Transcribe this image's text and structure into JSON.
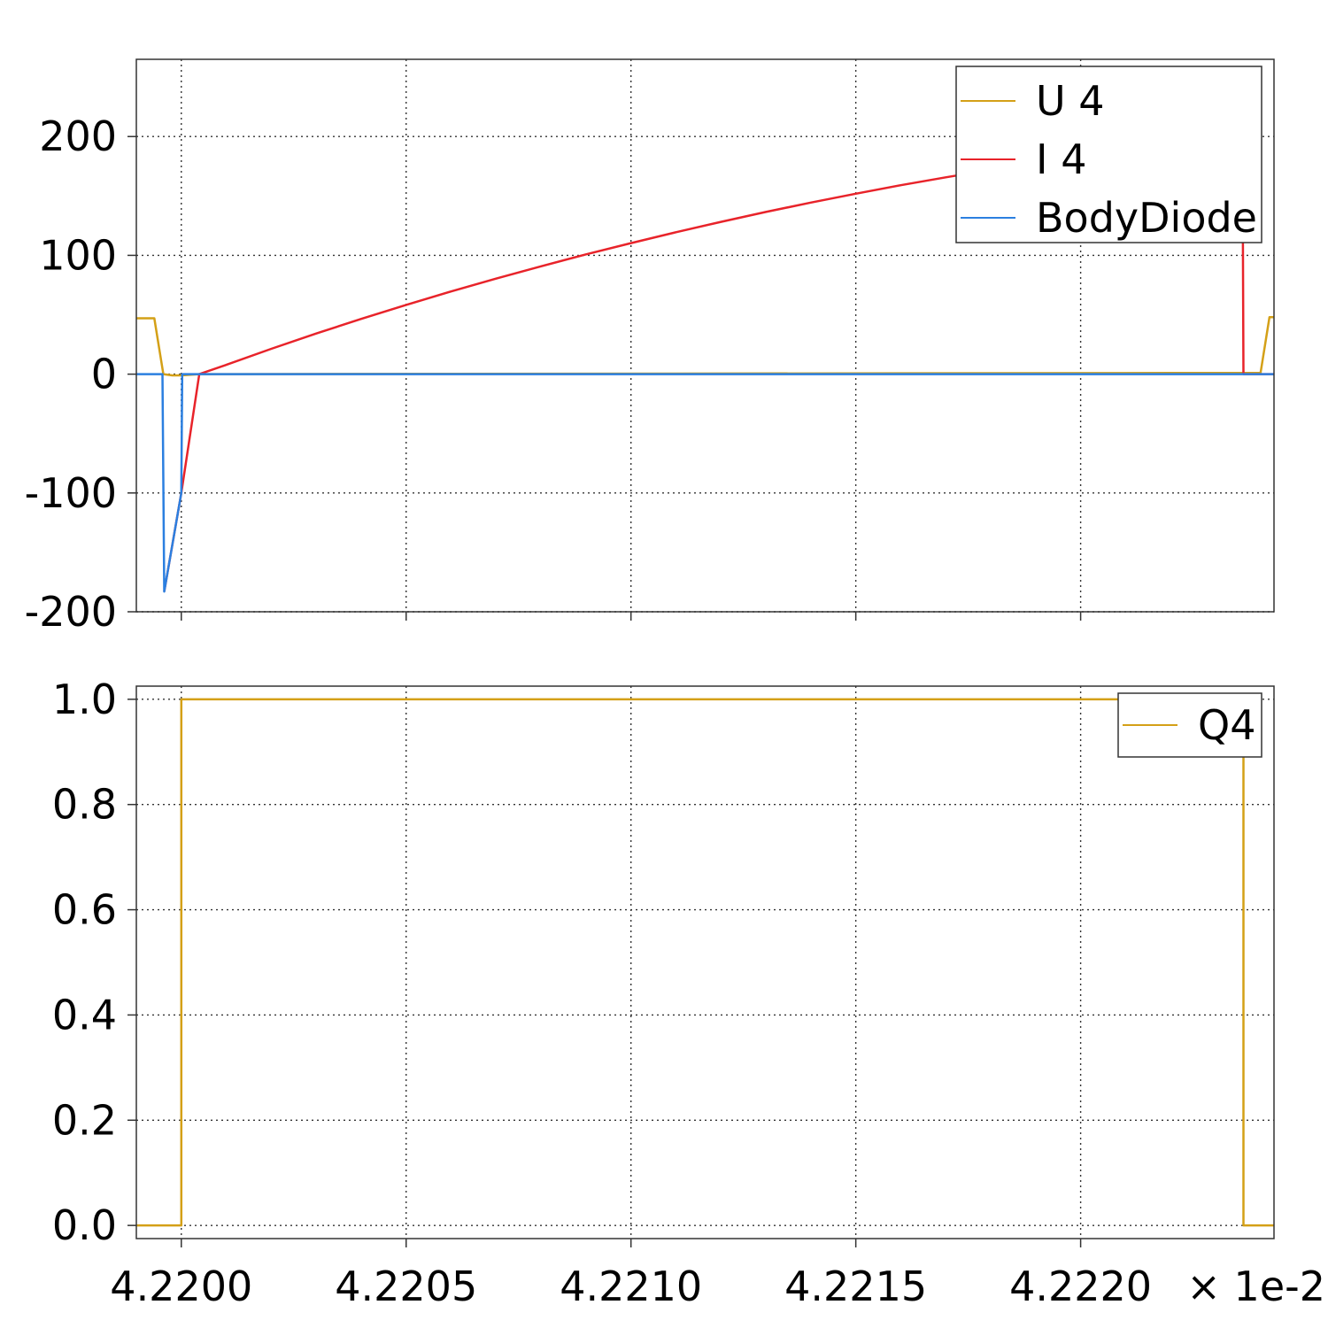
{
  "chart_data": [
    {
      "type": "line",
      "xlim": [
        42199.0,
        42224.3
      ],
      "ylim": [
        -200,
        265
      ],
      "yticks": [
        {
          "value": 200,
          "label": "200"
        },
        {
          "value": 100,
          "label": "100"
        },
        {
          "value": 0,
          "label": "0"
        },
        {
          "value": -100,
          "label": "-100"
        },
        {
          "value": -200,
          "label": "-200"
        }
      ],
      "xgrid": [
        42200,
        42205,
        42210,
        42215,
        42220,
        42225
      ],
      "grid": true,
      "legend": {
        "position": "top-right"
      },
      "series": [
        {
          "name": "U 4",
          "color": "#d4a017",
          "points": [
            [
              42199.0,
              47
            ],
            [
              42199.4,
              47
            ],
            [
              42199.6,
              0
            ],
            [
              42199.8,
              -1
            ],
            [
              42200.0,
              -1
            ],
            [
              42200.4,
              0
            ],
            [
              42222.0,
              1
            ],
            [
              42224.0,
              1
            ],
            [
              42224.2,
              48
            ],
            [
              42224.3,
              48
            ]
          ]
        },
        {
          "name": "I 4",
          "color": "#e8232a",
          "points": [
            [
              42199.62,
              -183
            ],
            [
              42200.0,
              -100
            ],
            [
              42200.4,
              0
            ],
            [
              42201,
              7.8
            ],
            [
              42202,
              21.3
            ],
            [
              42203,
              34.2
            ],
            [
              42204,
              46.5
            ],
            [
              42205,
              58.3
            ],
            [
              42206,
              69.6
            ],
            [
              42207,
              80.4
            ],
            [
              42208,
              90.8
            ],
            [
              42209,
              100.8
            ],
            [
              42210,
              110.3
            ],
            [
              42211,
              119.5
            ],
            [
              42212,
              128.2
            ],
            [
              42213,
              136.5
            ],
            [
              42214,
              144.4
            ],
            [
              42215,
              151.9
            ],
            [
              42216,
              159
            ],
            [
              42217,
              165.7
            ],
            [
              42218,
              172
            ],
            [
              42219,
              177.9
            ],
            [
              42220,
              183.4
            ],
            [
              42221,
              188.5
            ],
            [
              42222,
              193.2
            ],
            [
              42223,
              197.5
            ],
            [
              42223.6,
              200
            ],
            [
              42223.62,
              0
            ],
            [
              42224.3,
              0
            ]
          ]
        },
        {
          "name": "BodyDiode",
          "color": "#2b7fe0",
          "points": [
            [
              42199.0,
              0
            ],
            [
              42199.58,
              0
            ],
            [
              42199.62,
              -183
            ],
            [
              42200.0,
              -100
            ],
            [
              42200.02,
              0
            ],
            [
              42224.3,
              0
            ]
          ]
        }
      ]
    },
    {
      "type": "line",
      "xlim": [
        42199.0,
        42224.3
      ],
      "ylim": [
        -0.025,
        1.025
      ],
      "yticks": [
        {
          "value": 1.0,
          "label": "1.0"
        },
        {
          "value": 0.8,
          "label": "0.8"
        },
        {
          "value": 0.6,
          "label": "0.6"
        },
        {
          "value": 0.4,
          "label": "0.4"
        },
        {
          "value": 0.2,
          "label": "0.2"
        },
        {
          "value": 0.0,
          "label": "0.0"
        }
      ],
      "xticks": [
        {
          "value": 42200,
          "label": "4.2200"
        },
        {
          "value": 42205,
          "label": "4.2205"
        },
        {
          "value": 42210,
          "label": "4.2210"
        },
        {
          "value": 42215,
          "label": "4.2215"
        },
        {
          "value": 42220,
          "label": "4.2220"
        }
      ],
      "xgrid": [
        42200,
        42205,
        42210,
        42215,
        42220,
        42225
      ],
      "x_multiplier_label": "× 1e-2",
      "grid": true,
      "legend": {
        "position": "top-right"
      },
      "series": [
        {
          "name": "Q4",
          "color": "#d4a017",
          "points": [
            [
              42199.0,
              0
            ],
            [
              42200.0,
              0
            ],
            [
              42200.0,
              1
            ],
            [
              42223.62,
              1
            ],
            [
              42223.62,
              0
            ],
            [
              42224.3,
              0
            ]
          ]
        }
      ]
    }
  ]
}
